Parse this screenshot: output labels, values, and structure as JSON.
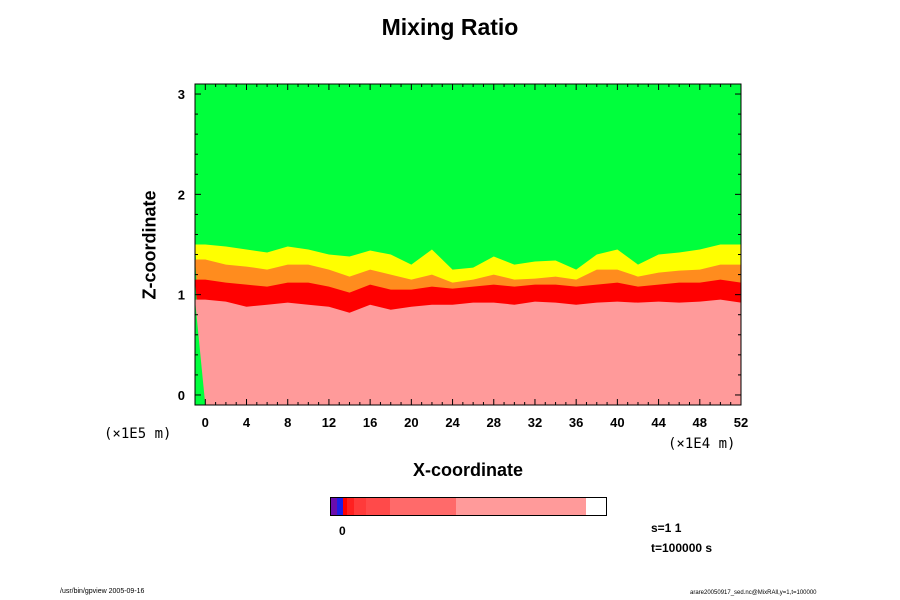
{
  "chart_data": {
    "type": "heatmap",
    "title": "Mixing Ratio",
    "xlabel": "X-coordinate",
    "ylabel": "Z-coordinate",
    "x_scale_label": "(×1E4 m)",
    "y_scale_label": "(×1E5 m)",
    "xlim": [
      -1,
      52
    ],
    "ylim": [
      -0.1,
      3.1
    ],
    "x_ticks": [
      "0",
      "4",
      "8",
      "12",
      "16",
      "20",
      "24",
      "28",
      "32",
      "36",
      "40",
      "44",
      "48",
      "52"
    ],
    "y_ticks": [
      "0",
      "1",
      "2",
      "3"
    ],
    "colorbar_label": "0",
    "regions_top_to_bottom": [
      {
        "level": "green",
        "color": "#00ff3c"
      },
      {
        "level": "yellow",
        "color": "#ffff00"
      },
      {
        "level": "orange",
        "color": "#ff8c1e"
      },
      {
        "level": "red",
        "color": "#ff0000"
      },
      {
        "level": "pink",
        "color": "#ff9a9a"
      }
    ],
    "colorbar_colors": [
      "#6a0dad",
      "#1e1ee6",
      "#ff0000",
      "#ff2020",
      "#ff3a3a",
      "#ff4a4a",
      "#ff6a6a",
      "#ff9a9a"
    ],
    "interface": {
      "x": [
        0,
        2,
        4,
        6,
        8,
        10,
        12,
        14,
        16,
        18,
        20,
        22,
        24,
        26,
        28,
        30,
        32,
        34,
        36,
        38,
        40,
        42,
        44,
        46,
        48,
        50,
        52
      ],
      "yellow": [
        1.5,
        1.48,
        1.45,
        1.42,
        1.48,
        1.45,
        1.4,
        1.38,
        1.44,
        1.4,
        1.3,
        1.45,
        1.25,
        1.27,
        1.38,
        1.3,
        1.33,
        1.34,
        1.25,
        1.4,
        1.45,
        1.3,
        1.4,
        1.42,
        1.45,
        1.5,
        1.5
      ],
      "orange": [
        1.35,
        1.3,
        1.28,
        1.25,
        1.3,
        1.3,
        1.25,
        1.18,
        1.25,
        1.2,
        1.15,
        1.2,
        1.12,
        1.15,
        1.2,
        1.15,
        1.16,
        1.18,
        1.15,
        1.25,
        1.25,
        1.18,
        1.22,
        1.24,
        1.25,
        1.3,
        1.3
      ],
      "red": [
        1.15,
        1.12,
        1.1,
        1.08,
        1.12,
        1.12,
        1.08,
        1.02,
        1.1,
        1.05,
        1.05,
        1.08,
        1.06,
        1.08,
        1.1,
        1.08,
        1.1,
        1.1,
        1.08,
        1.1,
        1.12,
        1.08,
        1.1,
        1.12,
        1.12,
        1.15,
        1.12
      ],
      "pink": [
        0.95,
        0.93,
        0.88,
        0.9,
        0.92,
        0.9,
        0.88,
        0.82,
        0.9,
        0.85,
        0.88,
        0.9,
        0.9,
        0.92,
        0.92,
        0.9,
        0.93,
        0.92,
        0.9,
        0.92,
        0.93,
        0.92,
        0.93,
        0.92,
        0.93,
        0.95,
        0.92
      ]
    }
  },
  "info": {
    "s": "s=1 1",
    "t": "t=100000 s"
  },
  "footer": {
    "left": "/usr/bin/gpview 2005-09-16",
    "right": "arare20050917_sed.nc@MixRAll,y=1,t=100000"
  }
}
